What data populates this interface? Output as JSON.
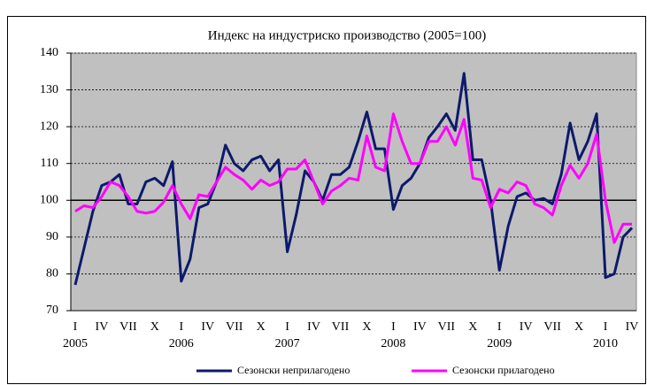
{
  "chart_data": {
    "type": "line",
    "title": "Индекс на индустриско производство (2005=100)",
    "categories": [
      "I",
      null,
      null,
      "IV",
      null,
      null,
      "VII",
      null,
      null,
      "X",
      null,
      null,
      "I",
      null,
      null,
      "IV",
      null,
      null,
      "VII",
      null,
      null,
      "X",
      null,
      null,
      "I",
      null,
      null,
      "IV",
      null,
      null,
      "VII",
      null,
      null,
      "X",
      null,
      null,
      "I",
      null,
      null,
      "IV",
      null,
      null,
      "VII",
      null,
      null,
      "X",
      null,
      null,
      "I",
      null,
      null,
      "IV",
      null,
      null,
      "VII",
      null,
      null,
      "X",
      null,
      null,
      "I",
      null,
      null,
      "IV"
    ],
    "year_labels": [
      "2005",
      null,
      null,
      null,
      null,
      null,
      null,
      null,
      null,
      null,
      null,
      null,
      "2006",
      null,
      null,
      null,
      null,
      null,
      null,
      null,
      null,
      null,
      null,
      null,
      "2007",
      null,
      null,
      null,
      null,
      null,
      null,
      null,
      null,
      null,
      null,
      null,
      "2008",
      null,
      null,
      null,
      null,
      null,
      null,
      null,
      null,
      null,
      null,
      null,
      "2009",
      null,
      null,
      null,
      null,
      null,
      null,
      null,
      null,
      null,
      null,
      null,
      "2010",
      null,
      null,
      null
    ],
    "series": [
      {
        "name": "Сезонски неприлагодено",
        "color": "#0d1a6b",
        "values": [
          77,
          87,
          97,
          104,
          105,
          107,
          99,
          99,
          105,
          106,
          104,
          110.5,
          78,
          84,
          98,
          99,
          105,
          115,
          110,
          108,
          111,
          112,
          108,
          111,
          86,
          96,
          108,
          105,
          100,
          107,
          107,
          109,
          116,
          124,
          114,
          114,
          97.5,
          104,
          106,
          110,
          117,
          120,
          123.5,
          119,
          134.5,
          111,
          111,
          100,
          81,
          93,
          101,
          102,
          100,
          100.5,
          99,
          107,
          121,
          111,
          116,
          123.5,
          79,
          80,
          90,
          92.5
        ]
      },
      {
        "name": "Сезонски прилагодено",
        "color": "#ff00ff",
        "values": [
          97,
          98.5,
          98,
          101,
          105,
          104,
          101,
          97,
          96.5,
          97,
          99.5,
          104,
          99,
          95,
          101.5,
          101,
          105,
          109,
          107,
          105.5,
          103,
          105.5,
          104,
          105,
          108.5,
          108.5,
          111,
          105,
          99,
          102.5,
          104,
          106,
          105.5,
          117.5,
          109,
          108,
          123.5,
          116,
          110,
          110,
          116,
          116,
          120,
          115,
          122,
          106,
          105.5,
          98,
          103,
          102,
          105,
          104,
          99,
          98,
          96,
          104,
          109.5,
          106,
          110,
          118,
          100,
          88.5,
          93.5,
          93.5
        ]
      }
    ],
    "ylim": [
      70,
      140
    ],
    "yticks": [
      70,
      80,
      90,
      100,
      110,
      120,
      130,
      140
    ],
    "grid": true,
    "reference_line": 100,
    "legend": "bottom"
  }
}
